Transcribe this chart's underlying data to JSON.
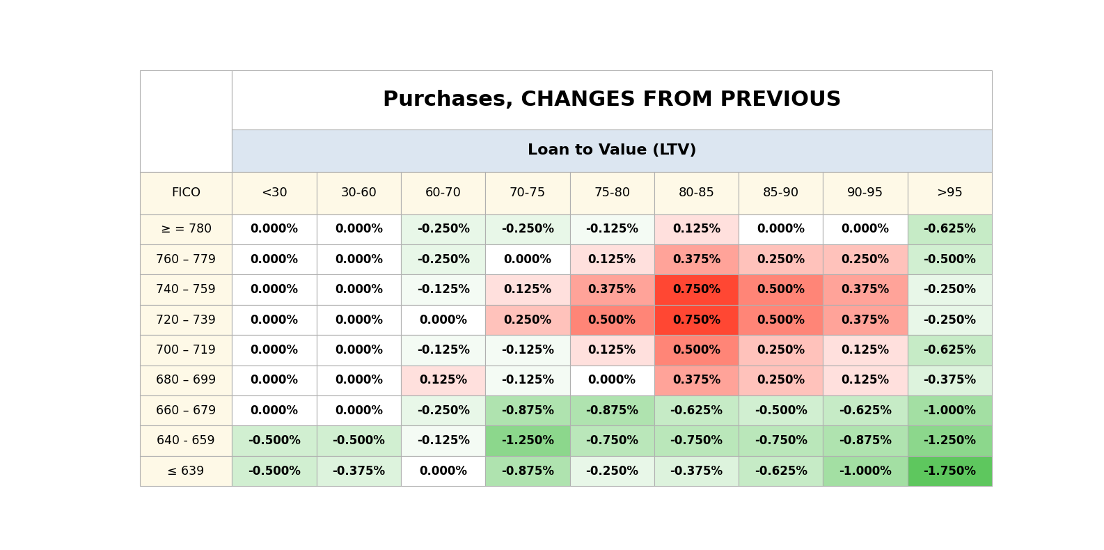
{
  "title": "Purchases, CHANGES FROM PREVIOUS",
  "subtitle": "Loan to Value (LTV)",
  "row_labels": [
    "≥ = 780",
    "760 – 779",
    "740 – 759",
    "720 – 739",
    "700 – 719",
    "680 – 699",
    "660 – 679",
    "640 - 659",
    "≤ 639"
  ],
  "col_labels": [
    "<30",
    "30-60",
    "60-70",
    "70-75",
    "75-80",
    "80-85",
    "85-90",
    "90-95",
    ">95"
  ],
  "fico_label": "FICO",
  "values": [
    [
      0.0,
      0.0,
      -0.25,
      -0.25,
      -0.125,
      0.125,
      0.0,
      0.0,
      -0.625
    ],
    [
      0.0,
      0.0,
      -0.25,
      0.0,
      0.125,
      0.375,
      0.25,
      0.25,
      -0.5
    ],
    [
      0.0,
      0.0,
      -0.125,
      0.125,
      0.375,
      0.75,
      0.5,
      0.375,
      -0.25
    ],
    [
      0.0,
      0.0,
      0.0,
      0.25,
      0.5,
      0.75,
      0.5,
      0.375,
      -0.25
    ],
    [
      0.0,
      0.0,
      -0.125,
      -0.125,
      0.125,
      0.5,
      0.25,
      0.125,
      -0.625
    ],
    [
      0.0,
      0.0,
      0.125,
      -0.125,
      0.0,
      0.375,
      0.25,
      0.125,
      -0.375
    ],
    [
      0.0,
      0.0,
      -0.25,
      -0.875,
      -0.875,
      -0.625,
      -0.5,
      -0.625,
      -1.0
    ],
    [
      -0.5,
      -0.5,
      -0.125,
      -1.25,
      -0.75,
      -0.75,
      -0.75,
      -0.875,
      -1.25
    ],
    [
      -0.5,
      -0.375,
      0.0,
      -0.875,
      -0.25,
      -0.375,
      -0.625,
      -1.0,
      -1.75
    ]
  ],
  "title_bg": "#ffffff",
  "subtitle_bg": "#dce6f1",
  "header_bg": "#fef9e7",
  "border_color": "#b0b0b0",
  "title_fontsize": 22,
  "subtitle_fontsize": 16,
  "header_fontsize": 13,
  "cell_fontsize": 12,
  "fig_width": 15.86,
  "fig_height": 7.9
}
